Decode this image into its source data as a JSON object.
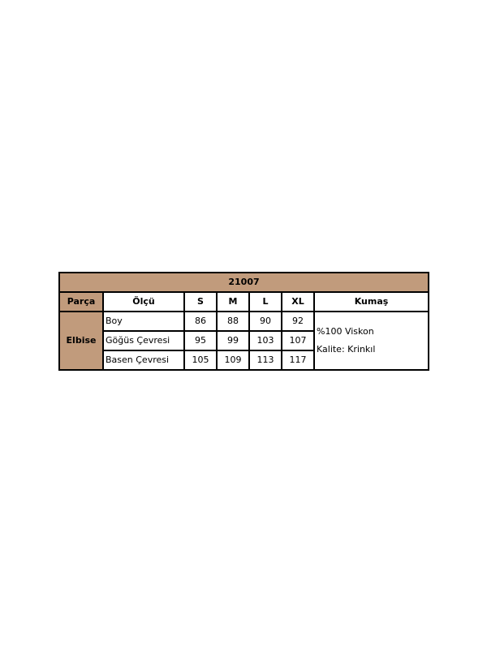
{
  "title": "21007",
  "headers": [
    "Parça",
    "Ölçü",
    "S",
    "M",
    "L",
    "XL",
    "Kumaş"
  ],
  "part": "Elbise",
  "rows": [
    {
      "label": "Boy",
      "values": [
        "86",
        "88",
        "90",
        "92"
      ]
    },
    {
      "label": "Göğüs Çevresi",
      "values": [
        "95",
        "99",
        "103",
        "107"
      ]
    },
    {
      "label": "Basen Çevresi",
      "values": [
        "105",
        "109",
        "113",
        "117"
      ]
    }
  ],
  "fabric": {
    "line1": "%100 Viskon",
    "line2": "Kalite: Krinkıl"
  },
  "colors": {
    "header_bg": "#c19b7c"
  }
}
